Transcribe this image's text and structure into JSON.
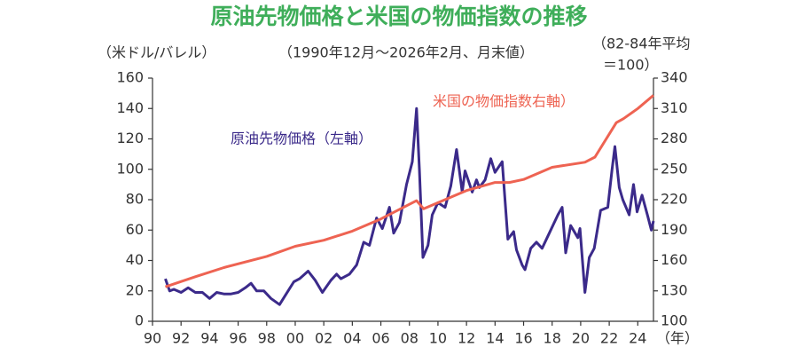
{
  "chart_data": {
    "type": "line",
    "title": "原油先物価格と米国の物価指数の推移",
    "subtitle": "（1990年12月～2026年2月、月末値）",
    "y_label": "（米ドル/バレル）",
    "y2_label": [
      "（82-84年平均",
      "＝100）"
    ],
    "x_label": "（年）",
    "xlim": [
      1990,
      2025.1
    ],
    "xticks": [
      {
        "value": 1990,
        "label": "90"
      },
      {
        "value": 1992,
        "label": "92"
      },
      {
        "value": 1994,
        "label": "94"
      },
      {
        "value": 1996,
        "label": "96"
      },
      {
        "value": 1998,
        "label": "98"
      },
      {
        "value": 2000,
        "label": "00"
      },
      {
        "value": 2002,
        "label": "02"
      },
      {
        "value": 2004,
        "label": "04"
      },
      {
        "value": 2006,
        "label": "06"
      },
      {
        "value": 2008,
        "label": "08"
      },
      {
        "value": 2010,
        "label": "10"
      },
      {
        "value": 2012,
        "label": "12"
      },
      {
        "value": 2014,
        "label": "14"
      },
      {
        "value": 2016,
        "label": "16"
      },
      {
        "value": 2018,
        "label": "18"
      },
      {
        "value": 2020,
        "label": "20"
      },
      {
        "value": 2022,
        "label": "22"
      },
      {
        "value": 2024,
        "label": "24"
      }
    ],
    "ylim": [
      0,
      160
    ],
    "yticks": [
      0,
      20,
      40,
      60,
      80,
      100,
      120,
      140,
      160
    ],
    "y2lim": [
      100,
      340
    ],
    "y2ticks": [
      100,
      130,
      160,
      190,
      220,
      250,
      280,
      310,
      340
    ],
    "series": [
      {
        "name": "原油先物価格（左軸）",
        "color": "#3b2a8a",
        "x": [
          1990.9,
          1991.2,
          1991.5,
          1992,
          1992.5,
          1993,
          1993.5,
          1994,
          1994.5,
          1995,
          1995.5,
          1996,
          1996.5,
          1996.9,
          1997.3,
          1997.8,
          1998.3,
          1998.9,
          1999.3,
          1999.9,
          2000.3,
          2000.9,
          2001.4,
          2001.9,
          2002.5,
          2002.9,
          2003.2,
          2003.8,
          2004.3,
          2004.8,
          2005.2,
          2005.7,
          2006.1,
          2006.6,
          2006.9,
          2007.3,
          2007.8,
          2008.2,
          2008.5,
          2008.7,
          2008.95,
          2009.3,
          2009.6,
          2010,
          2010.5,
          2010.9,
          2011.3,
          2011.7,
          2011.9,
          2012.4,
          2012.7,
          2012.9,
          2013.3,
          2013.7,
          2014,
          2014.5,
          2014.9,
          2015.3,
          2015.5,
          2015.9,
          2016.1,
          2016.5,
          2016.9,
          2017.3,
          2017.9,
          2018.4,
          2018.7,
          2018.95,
          2019.3,
          2019.8,
          2019.95,
          2020.3,
          2020.6,
          2020.95,
          2021.4,
          2021.9,
          2022.2,
          2022.4,
          2022.7,
          2022.95,
          2023.4,
          2023.7,
          2023.95,
          2024.3,
          2024.7,
          2024.95,
          2025.1
        ],
        "values": [
          28,
          20,
          21,
          19,
          22,
          19,
          19,
          15,
          19,
          18,
          18,
          19,
          22,
          25,
          20,
          20,
          15,
          11,
          17,
          26,
          28,
          33,
          27,
          19,
          27,
          31,
          28,
          31,
          37,
          52,
          50,
          68,
          61,
          75,
          58,
          65,
          90,
          105,
          140,
          100,
          42,
          50,
          70,
          78,
          75,
          89,
          113,
          85,
          99,
          85,
          93,
          88,
          93,
          107,
          98,
          105,
          54,
          59,
          47,
          37,
          34,
          48,
          52,
          48,
          60,
          70,
          75,
          45,
          63,
          55,
          61,
          19,
          42,
          48,
          73,
          75,
          100,
          115,
          88,
          80,
          70,
          90,
          72,
          83,
          69,
          60,
          66
        ]
      },
      {
        "name": "米国の物価指数右軸）",
        "color": "#ee6352",
        "axis": "y2",
        "x": [
          1990.9,
          1993,
          1995,
          1998,
          2000,
          2002,
          2004,
          2006,
          2008.5,
          2009,
          2010,
          2012,
          2014,
          2015,
          2016,
          2018,
          2020.3,
          2021,
          2022.5,
          2023,
          2024,
          2025.1
        ],
        "values": [
          134,
          144,
          153,
          164,
          174,
          180,
          189,
          201,
          219,
          211,
          217,
          229,
          237,
          237,
          240,
          252,
          257,
          262,
          296,
          300,
          310,
          323
        ]
      }
    ]
  }
}
